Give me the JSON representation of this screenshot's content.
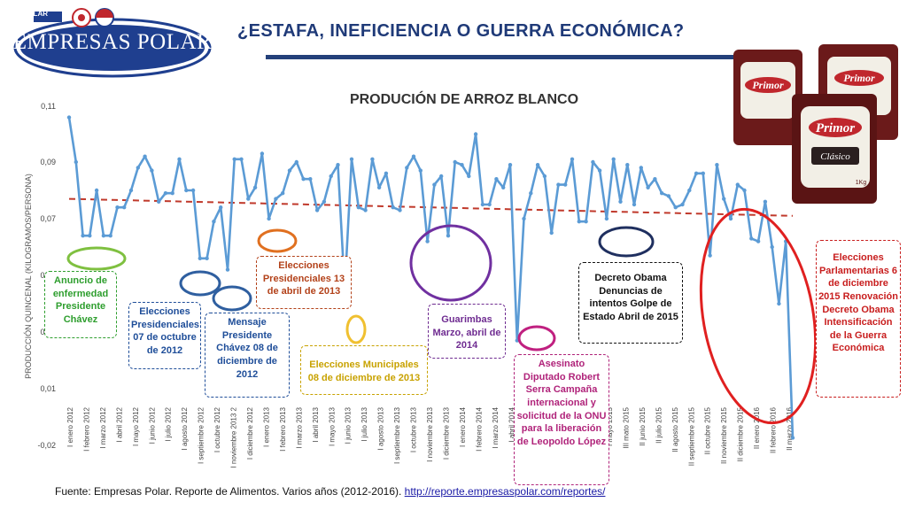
{
  "header": {
    "title": "¿ESTAFA, INEFICIENCIA O GUERRA ECONÓMICA?",
    "logo_text": "EMPRESAS POLAR",
    "logo_small_text": "POLAR",
    "product_brand": "Primor",
    "product_variant": "Clásico",
    "product_weight": "1Kg"
  },
  "chart_data": {
    "type": "line",
    "title": "PRODUCIÓN DE ARROZ BLANCO",
    "ylabel": "PRODUCCIÓN QUINCENAL (KILOGRAMOS/PERSONA)",
    "xlabel": "",
    "ylim": [
      -0.02,
      0.11
    ],
    "yticks": [
      "0,11",
      "0,09",
      "0,07",
      "0,05",
      "0,03",
      "0,01",
      "-0,02"
    ],
    "ytick_values": [
      0.11,
      0.09,
      0.07,
      0.05,
      0.03,
      0.01,
      -0.02
    ],
    "x_tick_labels": [
      "I enero 2012",
      "I febrero 2012",
      "I marzo 2012",
      "I abril 2012",
      "I mayo 2012",
      "I junio 2012",
      "I julio 2012",
      "I agosto 2012",
      "I septiembre 2012",
      "I octubre 2012",
      "I noviembre 2013 2",
      "I diciembre 2012",
      "I enero 2013",
      "I febrero 2013",
      "I marzo 2013",
      "I abril 2013",
      "I mayo 2013",
      "I junio 2013",
      "I julio 2013",
      "I agosto 2013",
      "I septiembre 2013",
      "I octubre 2013",
      "I noviembre 2013",
      "I diciembre 2013",
      "I enero 2014",
      "I febrero 2014",
      "I marzo 2014",
      "I abril 2014",
      "I mayo 2014",
      "I junio 2014",
      "I julio 2014",
      "I agosto 2014",
      "I abril 2015",
      "I mayo 2015",
      "III mato 2015",
      "II junio 2015",
      "II julio 2015",
      "II agosto 2015",
      "II septiembre 2015",
      "II octubre 2015",
      "II noviembre 2015",
      "II diciembre 2015",
      "II enero 2016",
      "II febrero 2016",
      "II marzo 2016"
    ],
    "series": [
      {
        "name": "",
        "color": "#5b9bd5",
        "values": [
          0.106,
          0.09,
          0.064,
          0.064,
          0.08,
          0.064,
          0.064,
          0.074,
          0.074,
          0.08,
          0.088,
          0.092,
          0.087,
          0.076,
          0.079,
          0.079,
          0.091,
          0.08,
          0.08,
          0.056,
          0.056,
          0.069,
          0.074,
          0.052,
          0.091,
          0.091,
          0.077,
          0.081,
          0.093,
          0.07,
          0.077,
          0.079,
          0.087,
          0.09,
          0.084,
          0.084,
          0.073,
          0.076,
          0.085,
          0.089,
          0.045,
          0.091,
          0.074,
          0.073,
          0.091,
          0.081,
          0.086,
          0.074,
          0.073,
          0.088,
          0.092,
          0.087,
          0.062,
          0.082,
          0.085,
          0.064,
          0.09,
          0.089,
          0.085,
          0.1,
          0.075,
          0.075,
          0.084,
          0.081,
          0.089,
          0.027,
          0.07,
          0.079,
          0.089,
          0.085,
          0.065,
          0.082,
          0.082,
          0.091,
          0.069,
          0.069,
          0.09,
          0.087,
          0.07,
          0.091,
          0.076,
          0.089,
          0.075,
          0.088,
          0.081,
          0.084,
          0.079,
          0.078,
          0.074,
          0.075,
          0.08,
          0.086,
          0.086,
          0.057,
          0.089,
          0.077,
          0.07,
          0.082,
          0.08,
          0.063,
          0.062,
          0.076,
          0.06,
          0.04,
          0.062,
          -0.016
        ]
      }
    ],
    "trendline": {
      "style": "dashed",
      "color": "#c0392b",
      "start": 0.077,
      "end": 0.071
    }
  },
  "annotations": [
    {
      "id": "anuncio",
      "text": "Anuncio de enfermedad Presidente Chávez",
      "color": "#2e9e2e"
    },
    {
      "id": "elecciones-2012",
      "text": "Elecciones Presidenciales 07 de octubre de 2012",
      "color": "#1f4e99"
    },
    {
      "id": "mensaje",
      "text": "Mensaje Presidente Chávez 08 de diciembre de 2012",
      "color": "#1f4e99"
    },
    {
      "id": "elecciones-2013",
      "text": "Elecciones Presidenciales 13 de abril de 2013",
      "color": "#b3421a"
    },
    {
      "id": "municipales",
      "text": "Elecciones Municipales 08 de diciembre de 2013",
      "color": "#c8a200"
    },
    {
      "id": "guarimbas",
      "text": "Guarimbas Marzo, abril de 2014",
      "color": "#6f2c91"
    },
    {
      "id": "asesinato",
      "text": "Asesinato Diputado Robert Serra Campaña internacional y solicitud de la ONU para la liberación de Leopoldo López",
      "color": "#b0237a"
    },
    {
      "id": "decreto",
      "text": "Decreto Obama Denuncias de intentos Golpe de Estado Abril de 2015",
      "color": "#111111"
    },
    {
      "id": "parlamentarias",
      "text": "Elecciones Parlamentarias 6 de diciembre 2015 Renovación Decreto Obama Intensificación de la Guerra Económica",
      "color": "#c81e1e"
    }
  ],
  "source": {
    "text": "Fuente: Empresas Polar. Reporte de Alimentos. Varios años (2012-2016). ",
    "link": "http://reporte.empresaspolar.com/reportes/"
  }
}
